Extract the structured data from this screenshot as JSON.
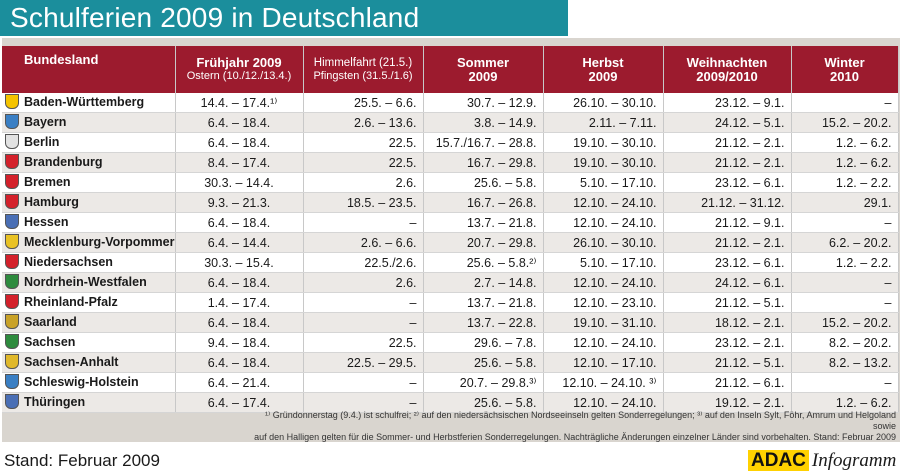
{
  "title": "Schulferien 2009 in Deutschland",
  "colors": {
    "title_bar": "#1b8e9c",
    "header": "#9c1b2e",
    "panel": "#d9d5cf"
  },
  "table": {
    "headers": [
      {
        "line1": "Bundesland",
        "line2": ""
      },
      {
        "line1": "Frühjahr 2009",
        "line2": "Ostern (10./12./13.4.)"
      },
      {
        "line1": "Himmelfahrt (21.5.)",
        "line2": "Pfingsten (31.5./1.6)"
      },
      {
        "line1": "Sommer",
        "line2": "2009"
      },
      {
        "line1": "Herbst",
        "line2": "2009"
      },
      {
        "line1": "Weihnachten",
        "line2": "2009/2010"
      },
      {
        "line1": "Winter",
        "line2": "2010"
      }
    ],
    "rows": [
      {
        "state": "Baden-Württemberg",
        "crest": "#f5c400",
        "fruehjahr": "14.4. – 17.4.¹⁾",
        "pfingsten": "25.5. – 6.6.",
        "sommer": "30.7. – 12.9.",
        "herbst": "26.10. – 30.10.",
        "weihnachten": "23.12. – 9.1.",
        "winter": "–"
      },
      {
        "state": "Bayern",
        "crest": "#3a7fc4",
        "fruehjahr": "6.4. – 18.4.",
        "pfingsten": "2.6. – 13.6.",
        "sommer": "3.8. – 14.9.",
        "herbst": "2.11. – 7.11.",
        "weihnachten": "24.12. – 5.1.",
        "winter": "15.2. – 20.2."
      },
      {
        "state": "Berlin",
        "crest": "#e2e2e2",
        "fruehjahr": "6.4. – 18.4.",
        "pfingsten": "22.5.",
        "sommer": "15.7./16.7. – 28.8.",
        "herbst": "19.10. – 30.10.",
        "weihnachten": "21.12. – 2.1.",
        "winter": "1.2. – 6.2."
      },
      {
        "state": "Brandenburg",
        "crest": "#d4212b",
        "fruehjahr": "8.4. – 17.4.",
        "pfingsten": "22.5.",
        "sommer": "16.7. – 29.8.",
        "herbst": "19.10. – 30.10.",
        "weihnachten": "21.12. – 2.1.",
        "winter": "1.2. – 6.2."
      },
      {
        "state": "Bremen",
        "crest": "#d4212b",
        "fruehjahr": "30.3. – 14.4.",
        "pfingsten": "2.6.",
        "sommer": "25.6. – 5.8.",
        "herbst": "5.10. – 17.10.",
        "weihnachten": "23.12. – 6.1.",
        "winter": "1.2. – 2.2."
      },
      {
        "state": "Hamburg",
        "crest": "#d4212b",
        "fruehjahr": "9.3. – 21.3.",
        "pfingsten": "18.5. – 23.5.",
        "sommer": "16.7. – 26.8.",
        "herbst": "12.10. – 24.10.",
        "weihnachten": "21.12. – 31.12.",
        "winter": "29.1."
      },
      {
        "state": "Hessen",
        "crest": "#4a6fb5",
        "fruehjahr": "6.4. – 18.4.",
        "pfingsten": "–",
        "sommer": "13.7. – 21.8.",
        "herbst": "12.10. – 24.10.",
        "weihnachten": "21.12. – 9.1.",
        "winter": "–"
      },
      {
        "state": "Mecklenburg-Vorpommern",
        "crest": "#e9c224",
        "fruehjahr": "6.4. – 14.4.",
        "pfingsten": "2.6. – 6.6.",
        "sommer": "20.7. – 29.8.",
        "herbst": "26.10. – 30.10.",
        "weihnachten": "21.12. – 2.1.",
        "winter": "6.2. – 20.2."
      },
      {
        "state": "Niedersachsen",
        "crest": "#d4212b",
        "fruehjahr": "30.3. – 15.4.",
        "pfingsten": "22.5./2.6.",
        "sommer": "25.6. – 5.8.²⁾",
        "herbst": "5.10. – 17.10.",
        "weihnachten": "23.12. – 6.1.",
        "winter": "1.2. – 2.2."
      },
      {
        "state": "Nordrhein-Westfalen",
        "crest": "#2e8b3e",
        "fruehjahr": "6.4. – 18.4.",
        "pfingsten": "2.6.",
        "sommer": "2.7. – 14.8.",
        "herbst": "12.10. – 24.10.",
        "weihnachten": "24.12. – 6.1.",
        "winter": "–"
      },
      {
        "state": "Rheinland-Pfalz",
        "crest": "#d4212b",
        "fruehjahr": "1.4. – 17.4.",
        "pfingsten": "–",
        "sommer": "13.7. – 21.8.",
        "herbst": "12.10. – 23.10.",
        "weihnachten": "21.12. – 5.1.",
        "winter": "–"
      },
      {
        "state": "Saarland",
        "crest": "#c9a227",
        "fruehjahr": "6.4. – 18.4.",
        "pfingsten": "–",
        "sommer": "13.7. – 22.8.",
        "herbst": "19.10. – 31.10.",
        "weihnachten": "18.12. – 2.1.",
        "winter": "15.2. – 20.2."
      },
      {
        "state": "Sachsen",
        "crest": "#2e8b3e",
        "fruehjahr": "9.4. – 18.4.",
        "pfingsten": "22.5.",
        "sommer": "29.6. – 7.8.",
        "herbst": "12.10. – 24.10.",
        "weihnachten": "23.12. – 2.1.",
        "winter": "8.2. – 20.2."
      },
      {
        "state": "Sachsen-Anhalt",
        "crest": "#e0b82a",
        "fruehjahr": "6.4. – 18.4.",
        "pfingsten": "22.5. – 29.5.",
        "sommer": "25.6. – 5.8.",
        "herbst": "12.10. – 17.10.",
        "weihnachten": "21.12. – 5.1.",
        "winter": "8.2. – 13.2."
      },
      {
        "state": "Schleswig-Holstein",
        "crest": "#3a7fc4",
        "fruehjahr": "6.4. – 21.4.",
        "pfingsten": "–",
        "sommer": "20.7. – 29.8.³⁾",
        "herbst": "12.10. – 24.10. ³⁾",
        "weihnachten": "21.12. – 6.1.",
        "winter": "–"
      },
      {
        "state": "Thüringen",
        "crest": "#4a6fb5",
        "fruehjahr": "6.4. – 17.4.",
        "pfingsten": "–",
        "sommer": "25.6. – 5.8.",
        "herbst": "12.10. – 24.10.",
        "weihnachten": "19.12. – 2.1.",
        "winter": "1.2. – 6.2."
      }
    ]
  },
  "footnote_line1": "¹⁾ Gründonnerstag (9.4.) ist schulfrei; ²⁾ auf den niedersächsischen Nordseeinseln gelten Sonderregelungen; ³⁾ auf den Inseln Sylt, Föhr, Amrum und Helgoland sowie",
  "footnote_line2": "auf den Halligen gelten für die Sommer- und Herbstferien Sonderregelungen. Nachträgliche Änderungen einzelner Länder sind vorbehalten. Stand: Februar 2009",
  "stand": "Stand: Februar 2009",
  "logo": {
    "brand": "ADAC",
    "suffix": "Infogramm"
  }
}
